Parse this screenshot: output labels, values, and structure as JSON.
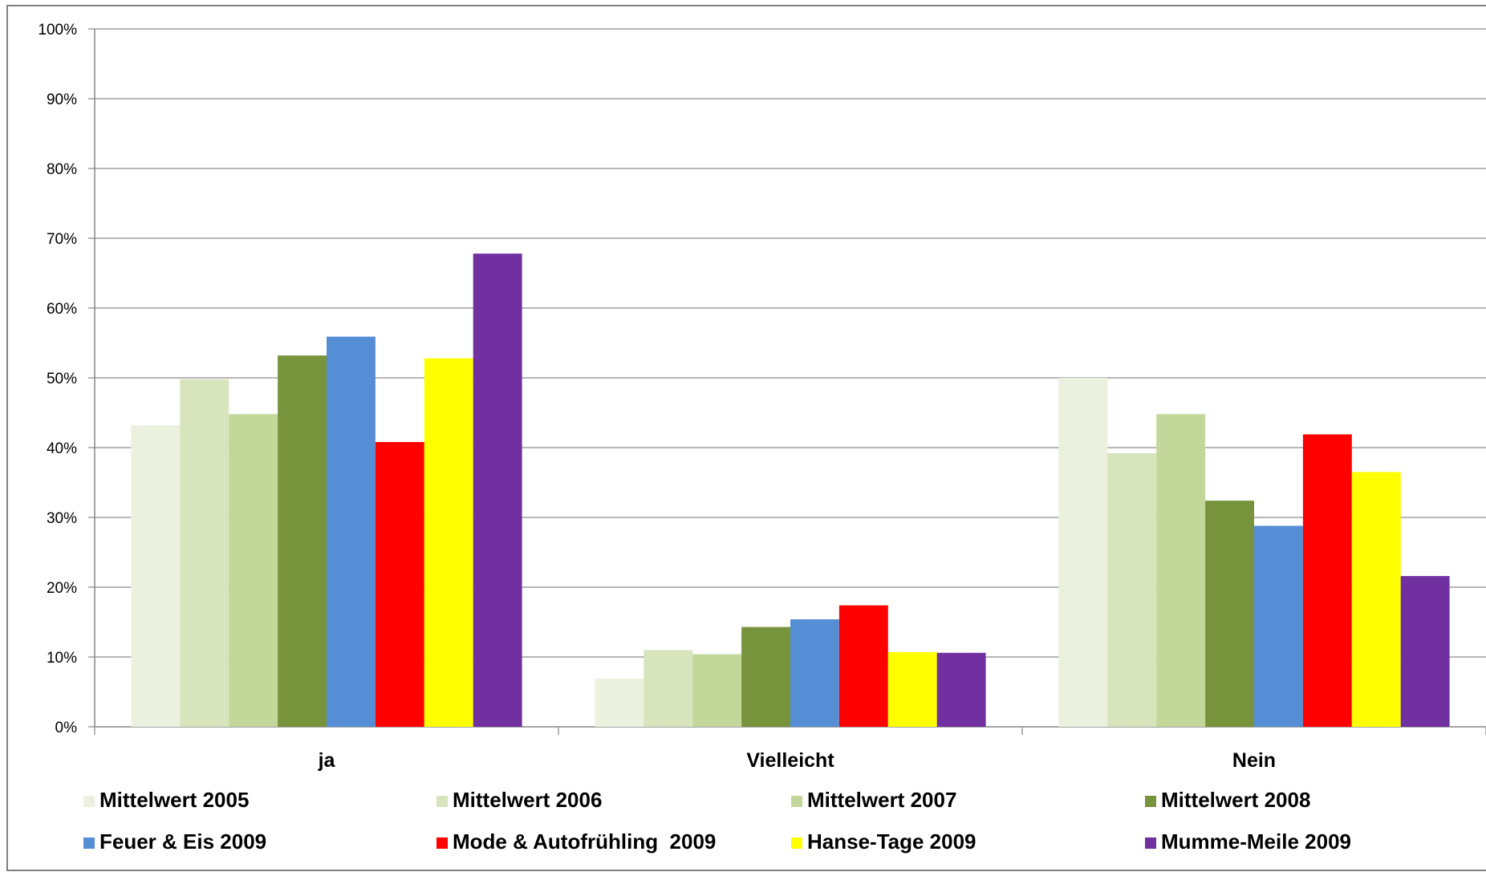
{
  "chart_data": {
    "type": "bar",
    "categories": [
      "ja",
      "Vielleicht",
      "Nein"
    ],
    "y_ticks": [
      "0%",
      "10%",
      "20%",
      "30%",
      "40%",
      "50%",
      "60%",
      "70%",
      "80%",
      "90%",
      "100%"
    ],
    "ylim": [
      0,
      100
    ],
    "grid": true,
    "legend_position": "bottom",
    "series": [
      {
        "name": "Mittelwert 2005",
        "color": "#ebf1de",
        "values": [
          43.2,
          6.9,
          50.0
        ]
      },
      {
        "name": "Mittelwert 2006",
        "color": "#d8e4bc",
        "values": [
          49.8,
          11.0,
          39.2
        ]
      },
      {
        "name": "Mittelwert 2007",
        "color": "#c4d79b",
        "values": [
          44.8,
          10.4,
          44.8
        ]
      },
      {
        "name": "Mittelwert 2008",
        "color": "#77933c",
        "values": [
          53.2,
          14.3,
          32.4
        ]
      },
      {
        "name": "Feuer & Eis 2009",
        "color": "#558ed5",
        "values": [
          55.9,
          15.4,
          28.8
        ]
      },
      {
        "name": "Mode & Autofrühling  2009",
        "color": "#ff0000",
        "values": [
          40.8,
          17.4,
          41.9
        ]
      },
      {
        "name": "Hanse-Tage 2009",
        "color": "#ffff00",
        "values": [
          52.8,
          10.7,
          36.5
        ]
      },
      {
        "name": "Mumme-Meile 2009",
        "color": "#7030a0",
        "values": [
          67.8,
          10.6,
          21.6
        ]
      }
    ]
  }
}
